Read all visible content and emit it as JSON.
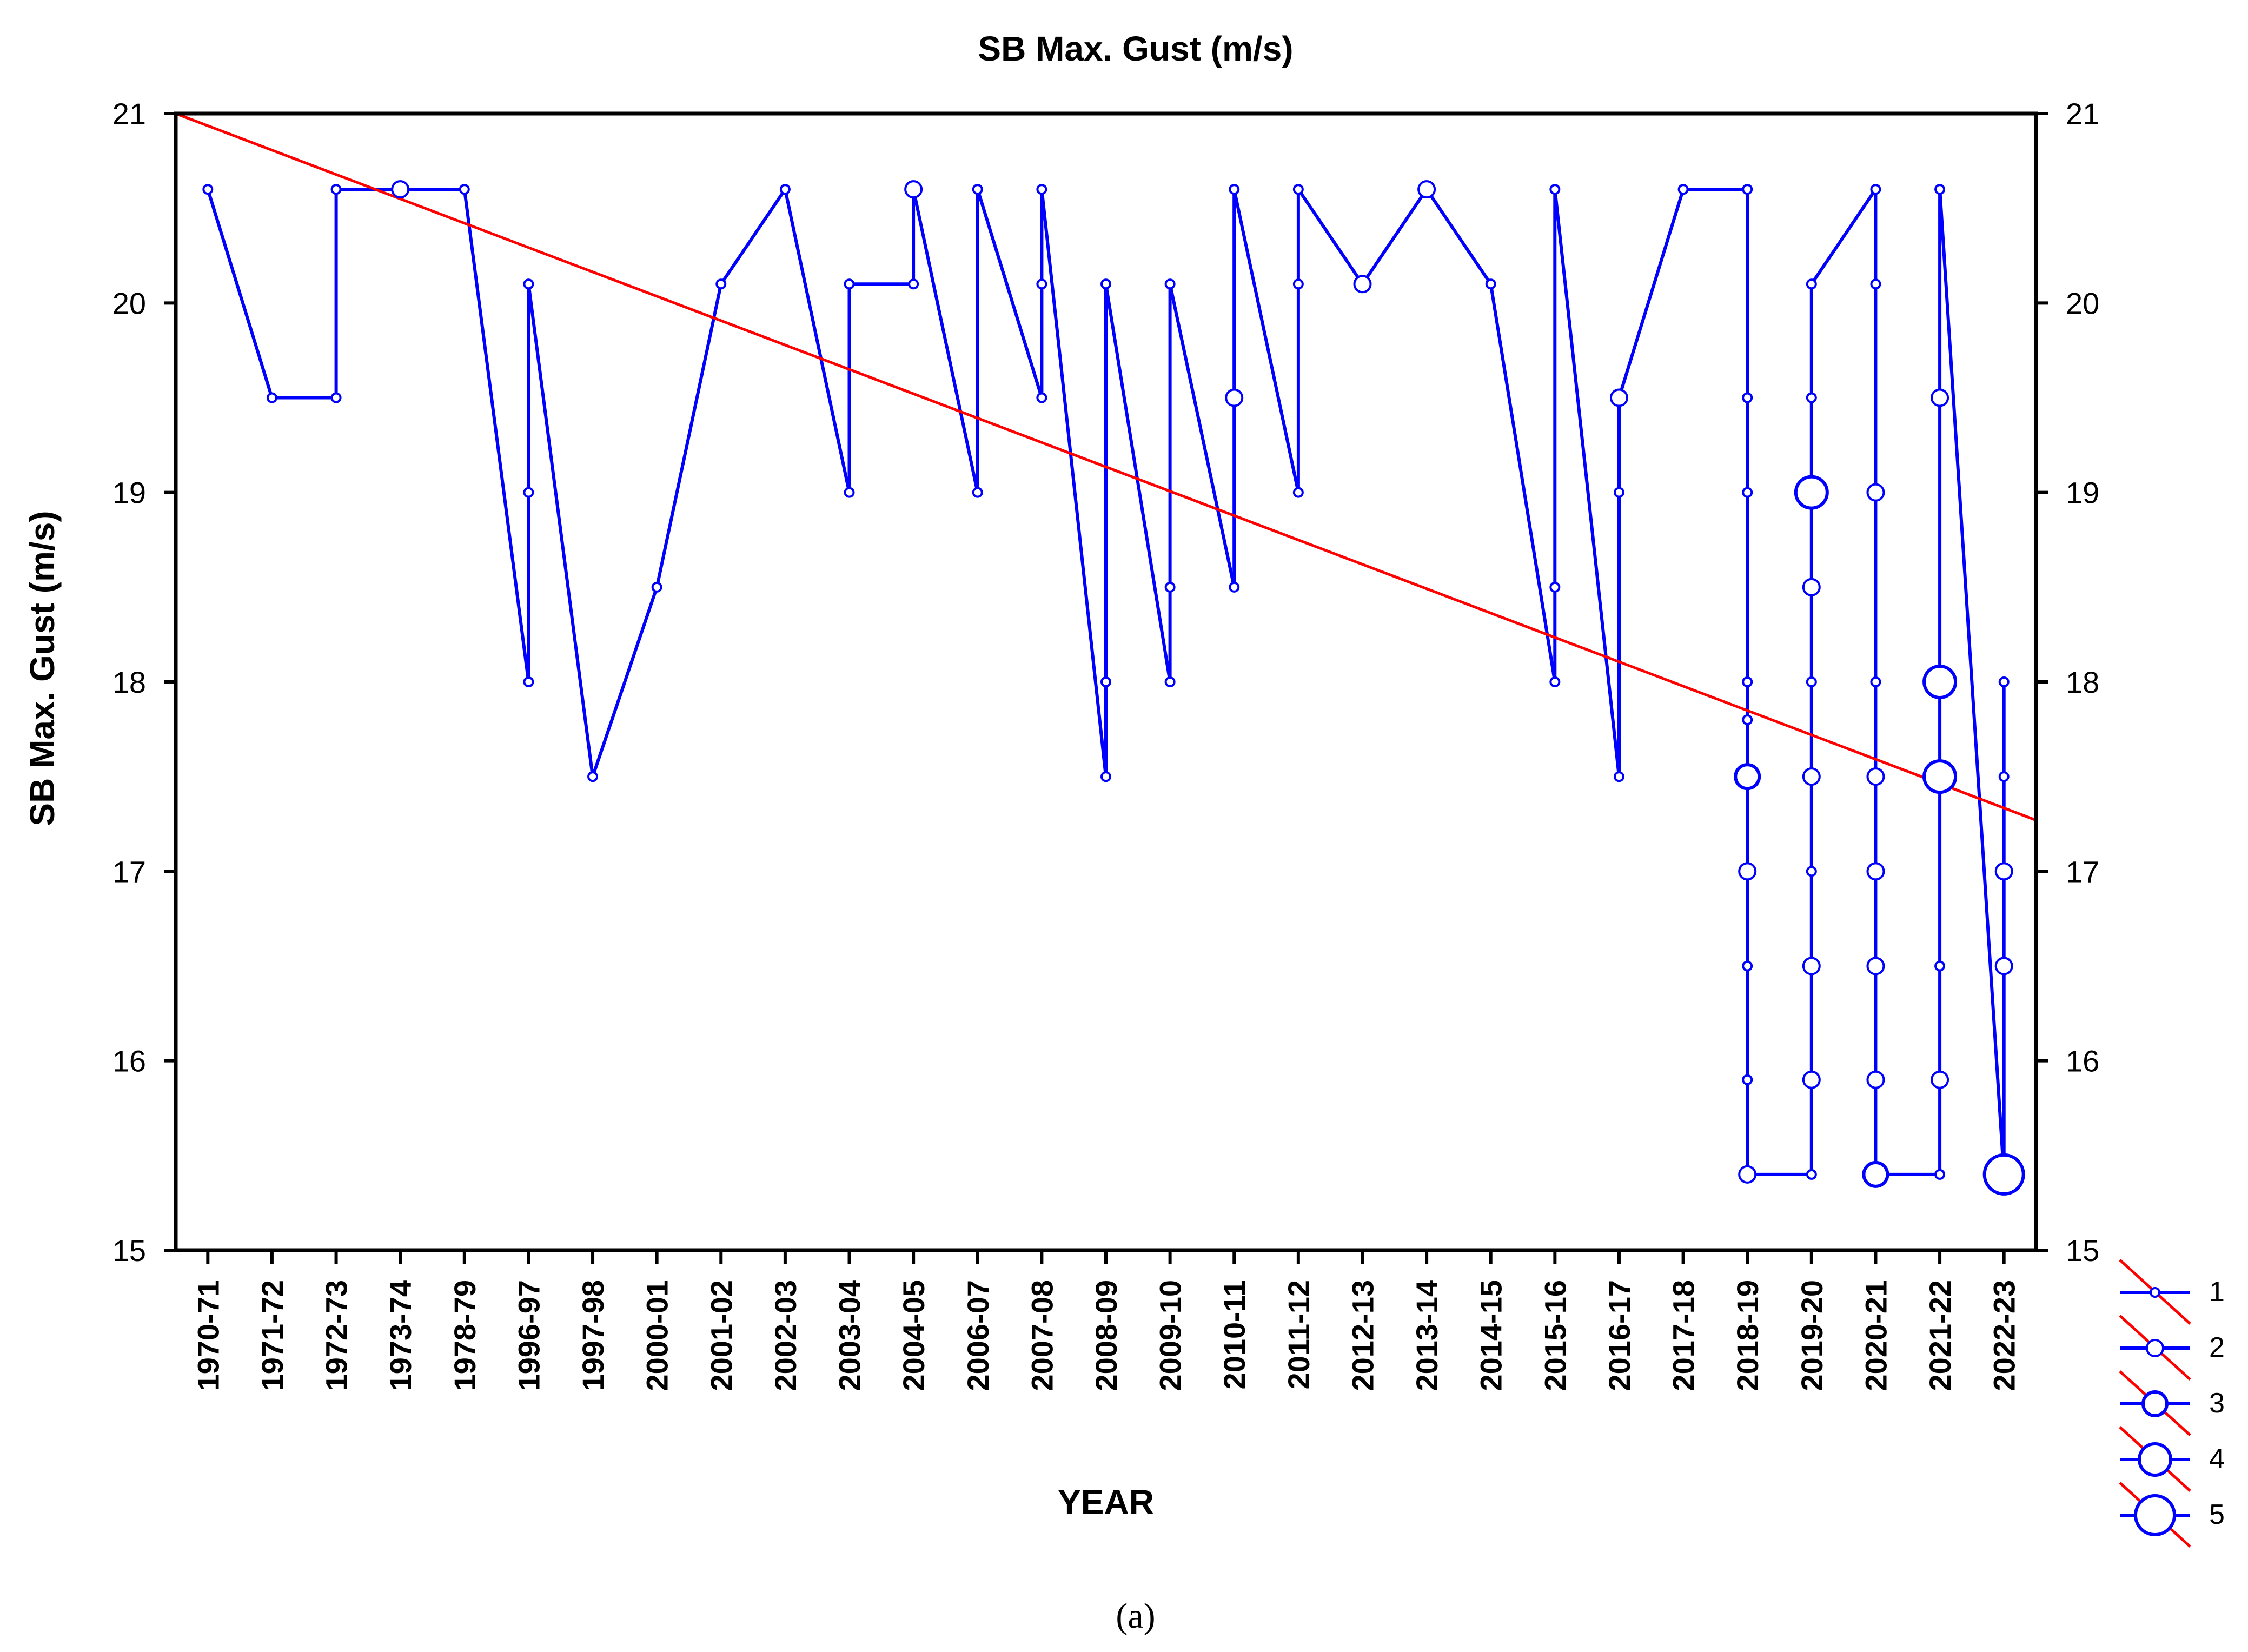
{
  "colors": {
    "series": "#0000ff",
    "trend": "#ff0000",
    "axis": "#000000",
    "background": "#ffffff"
  },
  "caption": "(a)",
  "chart_data": {
    "type": "line",
    "title": "SB Max. Gust (m/s)",
    "xlabel": "YEAR",
    "ylabel": "SB Max. Gust (m/s)",
    "ylim": [
      15,
      21
    ],
    "yticks": [
      15,
      16,
      17,
      18,
      19,
      20,
      21
    ],
    "categories": [
      "1970-71",
      "1971-72",
      "1972-73",
      "1973-74",
      "1978-79",
      "1996-97",
      "1997-98",
      "2000-01",
      "2001-02",
      "2002-03",
      "2003-04",
      "2004-05",
      "2006-07",
      "2007-08",
      "2008-09",
      "2009-10",
      "2010-11",
      "2011-12",
      "2012-13",
      "2013-14",
      "2014-15",
      "2015-16",
      "2016-17",
      "2017-18",
      "2018-19",
      "2019-20",
      "2020-21",
      "2021-22",
      "2022-23"
    ],
    "series": [
      {
        "name": "SB Max. Gust",
        "type": "line",
        "points": [
          [
            0,
            20.6
          ],
          [
            1,
            19.5
          ],
          [
            2,
            19.5
          ],
          [
            2,
            20.6
          ],
          [
            3,
            20.6
          ],
          [
            4,
            20.6
          ],
          [
            5,
            18.0
          ],
          [
            5,
            19.0
          ],
          [
            5,
            20.1
          ],
          [
            6,
            17.5
          ],
          [
            7,
            18.5
          ],
          [
            8,
            20.1
          ],
          [
            9,
            20.6
          ],
          [
            10,
            19.0
          ],
          [
            10,
            20.1
          ],
          [
            11,
            20.1
          ],
          [
            11,
            20.6
          ],
          [
            12,
            19.0
          ],
          [
            12,
            20.6
          ],
          [
            13,
            19.5
          ],
          [
            13,
            20.1
          ],
          [
            13,
            20.6
          ],
          [
            14,
            17.5
          ],
          [
            14,
            18.0
          ],
          [
            14,
            20.1
          ],
          [
            15,
            18.0
          ],
          [
            15,
            18.5
          ],
          [
            15,
            20.1
          ],
          [
            16,
            18.5
          ],
          [
            16,
            19.5
          ],
          [
            16,
            20.6
          ],
          [
            17,
            19.0
          ],
          [
            17,
            20.1
          ],
          [
            17,
            20.6
          ],
          [
            18,
            20.1
          ],
          [
            19,
            20.6
          ],
          [
            20,
            20.1
          ],
          [
            21,
            18.0
          ],
          [
            21,
            18.5
          ],
          [
            21,
            20.6
          ],
          [
            22,
            17.5
          ],
          [
            22,
            19.0
          ],
          [
            22,
            19.5
          ],
          [
            23,
            20.6
          ],
          [
            24,
            20.6
          ],
          [
            24,
            19.5
          ],
          [
            24,
            19.0
          ],
          [
            24,
            18.0
          ],
          [
            24,
            17.8
          ],
          [
            24,
            17.5
          ],
          [
            24,
            17.0
          ],
          [
            24,
            16.5
          ],
          [
            24,
            15.9
          ],
          [
            24,
            15.4
          ],
          [
            25,
            15.4
          ],
          [
            25,
            15.9
          ],
          [
            25,
            16.5
          ],
          [
            25,
            17.0
          ],
          [
            25,
            17.5
          ],
          [
            25,
            18.0
          ],
          [
            25,
            18.5
          ],
          [
            25,
            19.0
          ],
          [
            25,
            19.5
          ],
          [
            25,
            20.1
          ],
          [
            26,
            20.6
          ],
          [
            26,
            20.1
          ],
          [
            26,
            19.0
          ],
          [
            26,
            18.0
          ],
          [
            26,
            17.5
          ],
          [
            26,
            17.0
          ],
          [
            26,
            16.5
          ],
          [
            26,
            15.9
          ],
          [
            26,
            15.4
          ],
          [
            27,
            15.4
          ],
          [
            27,
            15.9
          ],
          [
            27,
            16.5
          ],
          [
            27,
            17.5
          ],
          [
            27,
            18.0
          ],
          [
            27,
            19.5
          ],
          [
            27,
            20.6
          ],
          [
            28,
            15.4
          ],
          [
            28,
            16.5
          ],
          [
            28,
            17.0
          ],
          [
            28,
            17.5
          ],
          [
            28,
            18.0
          ]
        ],
        "markers": [
          [
            0,
            20.6,
            1
          ],
          [
            1,
            19.5,
            1
          ],
          [
            2,
            19.5,
            1
          ],
          [
            2,
            20.6,
            1
          ],
          [
            3,
            20.6,
            2
          ],
          [
            4,
            20.6,
            1
          ],
          [
            5,
            18.0,
            1
          ],
          [
            5,
            19.0,
            1
          ],
          [
            5,
            20.1,
            1
          ],
          [
            6,
            17.5,
            1
          ],
          [
            7,
            18.5,
            1
          ],
          [
            8,
            20.1,
            1
          ],
          [
            9,
            20.6,
            1
          ],
          [
            10,
            19.0,
            1
          ],
          [
            10,
            20.1,
            1
          ],
          [
            11,
            20.1,
            1
          ],
          [
            11,
            20.6,
            2
          ],
          [
            12,
            19.0,
            1
          ],
          [
            12,
            20.6,
            1
          ],
          [
            13,
            19.5,
            1
          ],
          [
            13,
            20.1,
            1
          ],
          [
            13,
            20.6,
            1
          ],
          [
            14,
            17.5,
            1
          ],
          [
            14,
            18.0,
            1
          ],
          [
            14,
            20.1,
            1
          ],
          [
            15,
            18.0,
            1
          ],
          [
            15,
            18.5,
            1
          ],
          [
            15,
            20.1,
            1
          ],
          [
            16,
            18.5,
            1
          ],
          [
            16,
            19.5,
            2
          ],
          [
            16,
            20.6,
            1
          ],
          [
            17,
            19.0,
            1
          ],
          [
            17,
            20.1,
            1
          ],
          [
            17,
            20.6,
            1
          ],
          [
            18,
            20.1,
            2
          ],
          [
            19,
            20.6,
            2
          ],
          [
            20,
            20.1,
            1
          ],
          [
            21,
            18.0,
            1
          ],
          [
            21,
            18.5,
            1
          ],
          [
            21,
            20.6,
            1
          ],
          [
            22,
            17.5,
            1
          ],
          [
            22,
            19.0,
            1
          ],
          [
            22,
            19.5,
            2
          ],
          [
            23,
            20.6,
            1
          ],
          [
            24,
            20.6,
            1
          ],
          [
            24,
            19.5,
            1
          ],
          [
            24,
            19.0,
            1
          ],
          [
            24,
            18.0,
            1
          ],
          [
            24,
            17.8,
            1
          ],
          [
            24,
            17.5,
            3
          ],
          [
            24,
            17.0,
            2
          ],
          [
            24,
            16.5,
            1
          ],
          [
            24,
            15.9,
            1
          ],
          [
            24,
            15.4,
            2
          ],
          [
            25,
            20.1,
            1
          ],
          [
            25,
            19.5,
            1
          ],
          [
            25,
            19.0,
            4
          ],
          [
            25,
            18.5,
            2
          ],
          [
            25,
            18.0,
            1
          ],
          [
            25,
            17.5,
            2
          ],
          [
            25,
            17.0,
            1
          ],
          [
            25,
            16.5,
            2
          ],
          [
            25,
            15.9,
            2
          ],
          [
            25,
            15.4,
            1
          ],
          [
            26,
            20.6,
            1
          ],
          [
            26,
            20.1,
            1
          ],
          [
            26,
            19.0,
            2
          ],
          [
            26,
            18.0,
            1
          ],
          [
            26,
            17.5,
            2
          ],
          [
            26,
            17.0,
            2
          ],
          [
            26,
            16.5,
            2
          ],
          [
            26,
            15.9,
            2
          ],
          [
            26,
            15.4,
            3
          ],
          [
            27,
            20.6,
            1
          ],
          [
            27,
            19.5,
            2
          ],
          [
            27,
            18.0,
            4
          ],
          [
            27,
            17.5,
            4
          ],
          [
            27,
            16.5,
            1
          ],
          [
            27,
            15.9,
            2
          ],
          [
            27,
            15.4,
            1
          ],
          [
            28,
            18.0,
            1
          ],
          [
            28,
            17.5,
            1
          ],
          [
            28,
            17.0,
            2
          ],
          [
            28,
            16.5,
            2
          ],
          [
            28,
            15.4,
            5
          ]
        ]
      },
      {
        "name": "Trend",
        "type": "line",
        "points": [
          [
            -0.5,
            21.0
          ],
          [
            28.5,
            17.27
          ]
        ]
      }
    ],
    "legend": {
      "entries": [
        "1",
        "2",
        "3",
        "4",
        "5"
      ],
      "placement": "bottom-right"
    }
  }
}
